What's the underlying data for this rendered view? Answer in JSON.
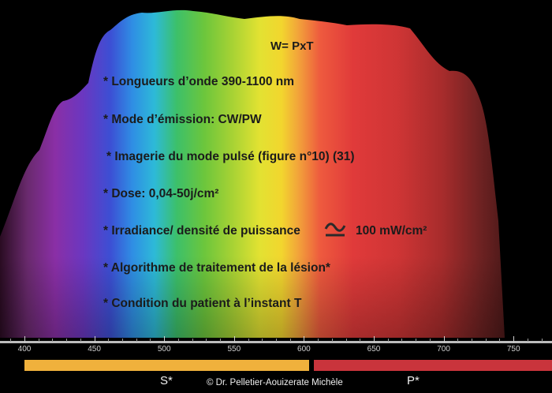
{
  "formula": "W= PxT",
  "bullets": [
    "* Longueurs d’onde 390-1100 nm",
    "* Mode d’émission: CW/PW",
    "* Imagerie du mode pulsé (figure n°10) (31)",
    "* Dose: 0,04-50j/cm²",
    "* Irradiance/ densité de puissance",
    "* Algorithme de traitement de la lésion*",
    "* Condition du patient à l’instant T"
  ],
  "irradiance_value": "100 mW/cm²",
  "approx_icon": "approximately-equal-icon",
  "axis": {
    "ticks": [
      "400",
      "450",
      "500",
      "550",
      "600",
      "650",
      "700",
      "750"
    ]
  },
  "bars": {
    "s_label": "S*",
    "p_label": "P*",
    "s_color": "#f0b13c",
    "p_color": "#c9343c"
  },
  "copyright": "© Dr. Pelletier-Aouizerate Michèle"
}
